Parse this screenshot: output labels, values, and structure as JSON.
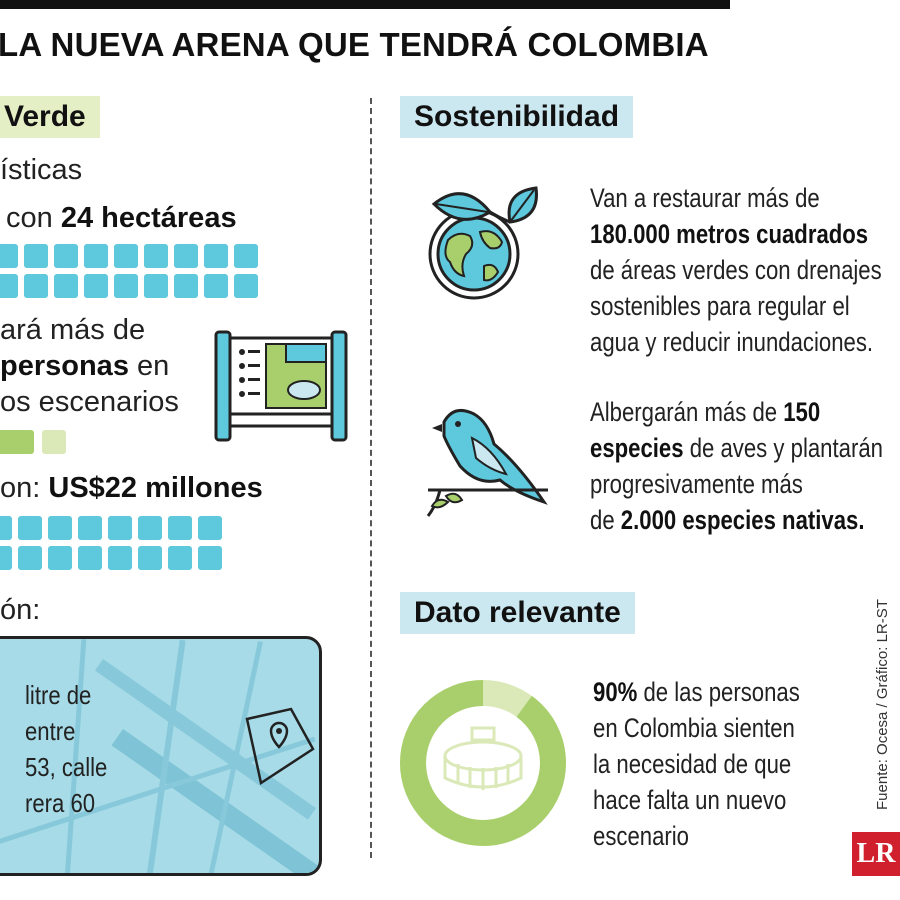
{
  "header": {
    "title": "LA NUEVA ARENA QUE TENDRÁ COLOMBIA"
  },
  "left": {
    "label": "Verde",
    "line1": "ísticas",
    "line2_pre": "con ",
    "line2_bold": "24 hectáreas",
    "line3": "ará más de",
    "line4_bold": "personas",
    "line4_post": " en",
    "line5": "os escenarios",
    "line6_pre": "on: ",
    "line6_bold": "US$22 millones",
    "line7": "ón:",
    "map_text": [
      "litre de",
      "entre",
      "53, calle",
      "rera 60"
    ]
  },
  "right": {
    "label_sostenibilidad": "Sostenibilidad",
    "p1": [
      "Van a restaurar más de",
      "180.000 metros cuadrados",
      "de áreas verdes con drenajes",
      "sostenibles para regular el",
      "agua y reducir inundaciones."
    ],
    "p2_l1_pre": "Albergarán más de ",
    "p2_l1_bold": "150",
    "p2_l2_bold": "especies",
    "p2_l2_post": " de aves y plantarán",
    "p2_l3": "progresivamente más",
    "p2_l4_pre": "de ",
    "p2_l4_bold": "2.000 especies nativas.",
    "label_dato": "Dato relevante",
    "p3_l1_bold": "90%",
    "p3_l1_post": " de las personas",
    "p3_rest": [
      "en Colombia sienten",
      "la necesidad de que",
      "hace falta un nuevo",
      "escenario"
    ],
    "donut_percent": 90
  },
  "footer": {
    "source": "Fuente: Ocesa / Gráfico: LR-ST",
    "logo": "LR"
  },
  "colors": {
    "blue_square": "#5ec8dc",
    "green_square": "#a9cf6d",
    "label_blue": "#cbe8f1",
    "label_green": "#e4efc6",
    "logo_red": "#d0202e"
  },
  "icons": [
    "earth-leaves-icon",
    "bird-icon",
    "stadium-map-board-icon",
    "map-pin-icon",
    "stadium-icon"
  ]
}
